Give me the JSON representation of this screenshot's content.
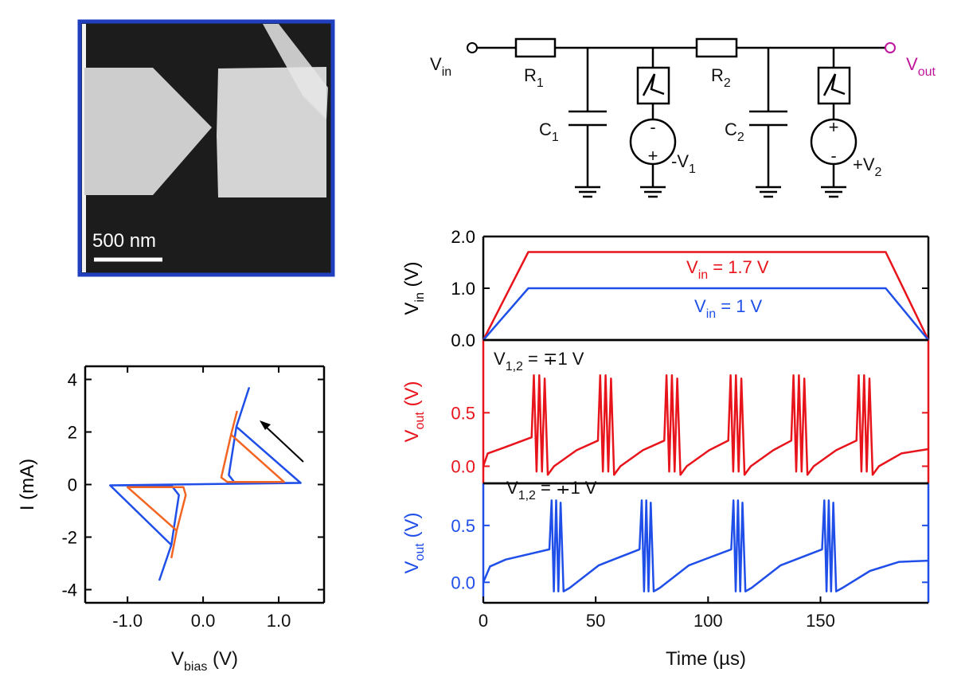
{
  "sem": {
    "scale_bar": "500 nm"
  },
  "circuit": {
    "vin": {
      "main": "V",
      "sub": "in"
    },
    "r1": {
      "main": "R",
      "sub": "1"
    },
    "r2": {
      "main": "R",
      "sub": "2"
    },
    "c1": {
      "main": "C",
      "sub": "1"
    },
    "c2": {
      "main": "C",
      "sub": "2"
    },
    "s1": {
      "main": "-V",
      "sub": "1"
    },
    "s2": {
      "main": "+V",
      "sub": "2"
    },
    "vout": {
      "main": "V",
      "sub": "out"
    },
    "s1_top": "-",
    "s1_bottom": "+",
    "s2_top": "+",
    "s2_bottom": "-"
  },
  "chart_data": [
    {
      "type": "line",
      "ylabel": {
        "main": "I (mA)"
      },
      "xlabel": {
        "main": "V",
        "sub": "bias",
        "rest": " (V)"
      },
      "xlim": [
        -1.56,
        1.6
      ],
      "ylim": [
        -4.5,
        4.5
      ],
      "xticks": [
        {
          "value": -1,
          "label": "-1.0"
        },
        {
          "value": 0,
          "label": "0.0"
        },
        {
          "value": 1,
          "label": "1.0"
        }
      ],
      "yticks": [
        -4,
        -2,
        0,
        2,
        4
      ],
      "series": [
        {
          "color": "#1f4fe8",
          "x": [
            0.61,
            0.44,
            0.34,
            0.42,
            1.29,
            0.44,
            null,
            -0.58,
            -0.42,
            -0.32,
            -0.42,
            -1.23,
            -0.42,
            null,
            -1.23,
            1.29
          ],
          "values": [
            3.7,
            2.2,
            0.36,
            0.06,
            0.06,
            2.2,
            null,
            -3.65,
            -2.3,
            -0.4,
            -0.03,
            -0.03,
            -2.3,
            null,
            -0.03,
            0.06
          ]
        },
        {
          "color": "#f26522",
          "x": [
            0.45,
            0.37,
            0.24,
            0.32,
            1.07,
            0.37,
            null,
            -0.42,
            -0.35,
            -0.23,
            -0.26,
            -1.0,
            -0.35
          ],
          "values": [
            2.8,
            1.9,
            0.27,
            0.1,
            0.1,
            1.9,
            null,
            -2.8,
            -1.75,
            -0.4,
            -0.1,
            -0.1,
            -1.75
          ]
        }
      ]
    },
    {
      "type": "line",
      "ylabel": {
        "main": "V",
        "sub": "in",
        "rest": " (V)"
      },
      "xlim": [
        0,
        198
      ],
      "ylim": [
        0,
        2
      ],
      "yticks": [
        {
          "value": 0,
          "label": "0.0"
        },
        {
          "value": 1,
          "label": "1.0"
        },
        {
          "value": 2,
          "label": "2.0"
        }
      ],
      "annotations": [
        {
          "main": "V",
          "sub": "in",
          "rest": " = 1.7 V",
          "color": "#e8141c"
        },
        {
          "main": "V",
          "sub": "in",
          "rest": " = 1 V",
          "color": "#1f4fe8"
        }
      ],
      "series": [
        {
          "color": "#e8141c",
          "x": [
            0,
            20,
            179,
            198
          ],
          "values": [
            0,
            1.7,
            1.7,
            0
          ]
        },
        {
          "color": "#1f4fe8",
          "x": [
            0,
            20,
            179,
            198
          ],
          "values": [
            0,
            1,
            1,
            0
          ]
        }
      ]
    },
    {
      "type": "line",
      "ylabel": {
        "main": "V",
        "sub": "out",
        "rest": " (V)"
      },
      "axis_color": "#e8141c",
      "xlim": [
        0,
        198
      ],
      "ylim": [
        -0.16,
        1.18
      ],
      "yticks": [
        {
          "value": 0,
          "label": "0.0"
        },
        0.5
      ],
      "annotations": [
        {
          "main": "V",
          "sub": "1,2",
          "rest": " = ∓1 V",
          "color": "#111111"
        }
      ],
      "series": [
        {
          "color": "#e8141c",
          "x": [
            0,
            2,
            10,
            21.5,
            22.5,
            23.7,
            24.9,
            26.1,
            27.3,
            28.7,
            31.5,
            41.5,
            51,
            52,
            53.2,
            54.4,
            55.6,
            56.8,
            58.2,
            61,
            71,
            80.5,
            81.5,
            82.7,
            83.9,
            85.1,
            86.3,
            87.7,
            90.5,
            100.5,
            109,
            110,
            111.2,
            112.4,
            113.6,
            114.8,
            116.2,
            119,
            129,
            137,
            138,
            139.2,
            140.4,
            141.6,
            142.8,
            144.2,
            147,
            157,
            166,
            167,
            168.2,
            169.4,
            170.6,
            171.8,
            173.2,
            176,
            186,
            198
          ],
          "values": [
            0,
            0.12,
            0.18,
            0.27,
            0.85,
            -0.05,
            0.85,
            -0.05,
            0.82,
            -0.08,
            0,
            0.15,
            0.24,
            0.85,
            -0.05,
            0.85,
            -0.05,
            0.82,
            -0.08,
            0,
            0.15,
            0.24,
            0.85,
            -0.05,
            0.85,
            -0.05,
            0.82,
            -0.08,
            0,
            0.15,
            0.24,
            0.85,
            -0.05,
            0.85,
            -0.05,
            0.82,
            -0.08,
            0,
            0.15,
            0.24,
            0.85,
            -0.05,
            0.85,
            -0.05,
            0.82,
            -0.08,
            0,
            0.15,
            0.24,
            0.85,
            -0.05,
            0.85,
            -0.05,
            0.82,
            -0.08,
            0,
            0.12,
            0.16
          ]
        }
      ]
    },
    {
      "type": "line",
      "ylabel": {
        "main": "V",
        "sub": "out",
        "rest": " (V)"
      },
      "xlabel": {
        "main": "Time (µs)"
      },
      "axis_color": "#1f4fe8",
      "xlim": [
        0,
        198
      ],
      "ylim": [
        -0.18,
        0.87
      ],
      "xticks": [
        0,
        50,
        100,
        150
      ],
      "yticks": [
        {
          "value": 0,
          "label": "0.0"
        },
        0.5
      ],
      "annotations": [
        {
          "main": "V",
          "sub": "1,2",
          "rest": " = ∓1 V",
          "color": "#111111"
        }
      ],
      "series": [
        {
          "color": "#1f4fe8",
          "x": [
            0,
            3,
            10,
            29.4,
            30.4,
            31.4,
            32.4,
            33.4,
            34.4,
            35.7,
            38.4,
            51.4,
            69.5,
            70.5,
            71.5,
            72.5,
            73.5,
            74.5,
            75.8,
            78.5,
            91.5,
            110.3,
            111.3,
            112.3,
            113.3,
            114.3,
            115.3,
            116.6,
            119.3,
            132.3,
            150.7,
            151.7,
            152.7,
            153.7,
            154.7,
            155.7,
            157,
            159.7,
            172,
            185,
            198
          ],
          "values": [
            0,
            0.14,
            0.2,
            0.29,
            0.72,
            -0.08,
            0.72,
            -0.08,
            0.7,
            -0.08,
            -0.05,
            0.15,
            0.29,
            0.72,
            -0.08,
            0.72,
            -0.08,
            0.7,
            -0.08,
            -0.05,
            0.15,
            0.29,
            0.72,
            -0.08,
            0.72,
            -0.08,
            0.7,
            -0.08,
            -0.05,
            0.15,
            0.29,
            0.72,
            -0.08,
            0.72,
            -0.08,
            0.7,
            -0.08,
            -0.05,
            0.1,
            0.18,
            0.19
          ]
        }
      ]
    }
  ]
}
